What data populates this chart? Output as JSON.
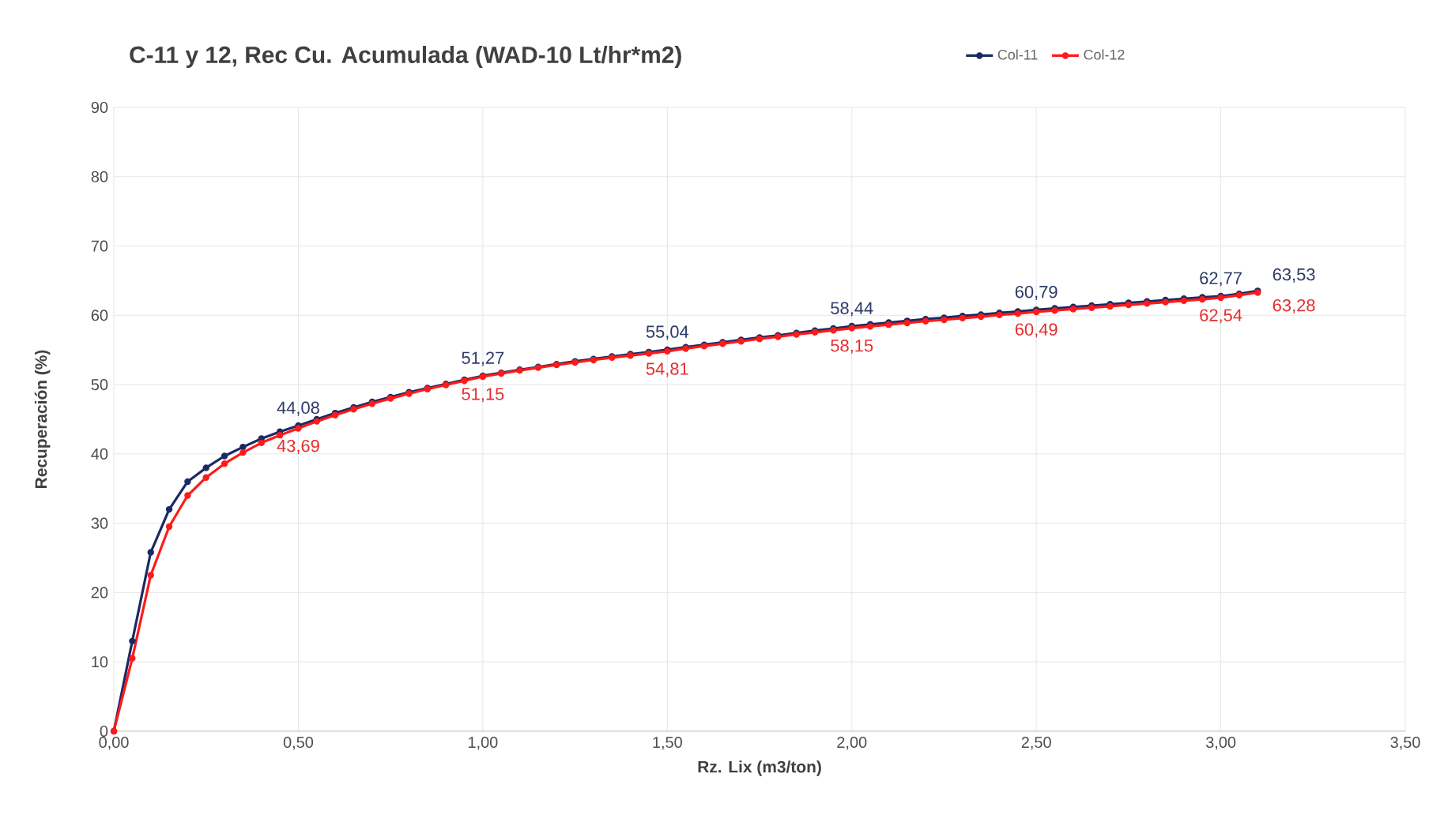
{
  "chart_data": {
    "type": "line",
    "title": "C-11 y 12, Rec Cu. Acumulada (WAD-10 Lt/hr*m2)",
    "xlabel": "Rz. Lix (m3/ton)",
    "ylabel": "Recuperación (%)",
    "x": [
      0,
      0.05,
      0.1,
      0.15,
      0.2,
      0.25,
      0.3,
      0.35,
      0.4,
      0.45,
      0.5,
      0.55,
      0.6,
      0.65,
      0.7,
      0.75,
      0.8,
      0.85,
      0.9,
      0.95,
      1.0,
      1.05,
      1.1,
      1.15,
      1.2,
      1.25,
      1.3,
      1.35,
      1.4,
      1.45,
      1.5,
      1.55,
      1.6,
      1.65,
      1.7,
      1.75,
      1.8,
      1.85,
      1.9,
      1.95,
      2.0,
      2.05,
      2.1,
      2.15,
      2.2,
      2.25,
      2.3,
      2.35,
      2.4,
      2.45,
      2.5,
      2.55,
      2.6,
      2.65,
      2.7,
      2.75,
      2.8,
      2.85,
      2.9,
      2.95,
      3.0,
      3.05,
      3.1
    ],
    "series": [
      {
        "name": "Col-11",
        "color": "#1b2a63",
        "values": [
          0,
          13,
          25.8,
          32,
          36,
          38,
          39.7,
          41,
          42.2,
          43.2,
          44.08,
          45.0,
          45.9,
          46.7,
          47.5,
          48.2,
          48.9,
          49.5,
          50.1,
          50.7,
          51.27,
          51.7,
          52.15,
          52.55,
          52.95,
          53.35,
          53.7,
          54.05,
          54.4,
          54.7,
          55.04,
          55.4,
          55.75,
          56.1,
          56.45,
          56.8,
          57.1,
          57.45,
          57.8,
          58.1,
          58.44,
          58.7,
          58.95,
          59.2,
          59.45,
          59.65,
          59.9,
          60.1,
          60.35,
          60.55,
          60.79,
          61.0,
          61.2,
          61.4,
          61.6,
          61.8,
          62.0,
          62.2,
          62.4,
          62.6,
          62.77,
          63.1,
          63.53
        ],
        "value_labels": [
          null,
          null,
          null,
          null,
          null,
          null,
          null,
          null,
          null,
          null,
          "44,08",
          null,
          null,
          null,
          null,
          null,
          null,
          null,
          null,
          null,
          "51,27",
          null,
          null,
          null,
          null,
          null,
          null,
          null,
          null,
          null,
          "55,04",
          null,
          null,
          null,
          null,
          null,
          null,
          null,
          null,
          null,
          "58,44",
          null,
          null,
          null,
          null,
          null,
          null,
          null,
          null,
          null,
          "60,79",
          null,
          null,
          null,
          null,
          null,
          null,
          null,
          null,
          null,
          "62,77",
          null,
          "63,53"
        ]
      },
      {
        "name": "Col-12",
        "color": "#ff1a1a",
        "values": [
          0,
          10.5,
          22.5,
          29.5,
          34,
          36.6,
          38.6,
          40.2,
          41.6,
          42.7,
          43.69,
          44.7,
          45.6,
          46.45,
          47.25,
          48.0,
          48.7,
          49.35,
          49.95,
          50.55,
          51.15,
          51.6,
          52.05,
          52.45,
          52.85,
          53.2,
          53.55,
          53.9,
          54.2,
          54.5,
          54.81,
          55.2,
          55.55,
          55.9,
          56.25,
          56.6,
          56.9,
          57.25,
          57.55,
          57.85,
          58.15,
          58.4,
          58.65,
          58.9,
          59.15,
          59.35,
          59.6,
          59.8,
          60.05,
          60.25,
          60.49,
          60.7,
          60.9,
          61.1,
          61.3,
          61.5,
          61.7,
          61.9,
          62.1,
          62.3,
          62.54,
          62.9,
          63.28
        ],
        "value_labels": [
          null,
          null,
          null,
          null,
          null,
          null,
          null,
          null,
          null,
          null,
          "43,69",
          null,
          null,
          null,
          null,
          null,
          null,
          null,
          null,
          null,
          "51,15",
          null,
          null,
          null,
          null,
          null,
          null,
          null,
          null,
          null,
          "54,81",
          null,
          null,
          null,
          null,
          null,
          null,
          null,
          null,
          null,
          "58,15",
          null,
          null,
          null,
          null,
          null,
          null,
          null,
          null,
          null,
          "60,49",
          null,
          null,
          null,
          null,
          null,
          null,
          null,
          null,
          null,
          "62,54",
          null,
          "63,28"
        ]
      }
    ],
    "xlim": [
      0,
      3.5
    ],
    "ylim": [
      0,
      90
    ],
    "xticks": [
      {
        "value": 0,
        "label": "0,00"
      },
      {
        "value": 0.5,
        "label": "0,50"
      },
      {
        "value": 1.0,
        "label": "1,00"
      },
      {
        "value": 1.5,
        "label": "1,50"
      },
      {
        "value": 2.0,
        "label": "2,00"
      },
      {
        "value": 2.5,
        "label": "2,50"
      },
      {
        "value": 3.0,
        "label": "3,00"
      },
      {
        "value": 3.5,
        "label": "3,50"
      }
    ],
    "yticks": [
      0,
      10,
      20,
      30,
      40,
      50,
      60,
      70,
      80,
      90
    ],
    "grid": true,
    "legend": "top right",
    "marker": "circle",
    "line_style": "solid"
  }
}
